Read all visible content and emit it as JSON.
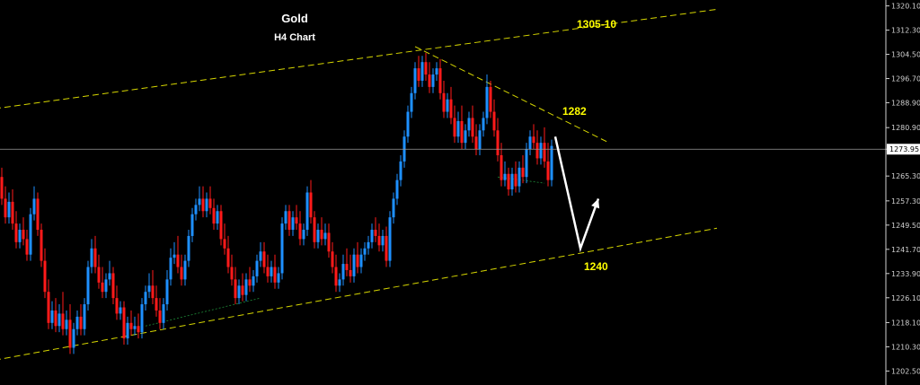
{
  "chart_data": {
    "type": "candlestick",
    "title": "Gold",
    "subtitle": "H4 Chart",
    "ylim": [
      1198.0,
      1322.0
    ],
    "y_ticks": [
      "1320.10",
      "1312.30",
      "1304.50",
      "1296.70",
      "1288.90",
      "1280.90",
      "1273.95",
      "1265.30",
      "1257.30",
      "1249.50",
      "1241.70",
      "1233.90",
      "1226.10",
      "1218.10",
      "1210.30",
      "1202.50"
    ],
    "current_price": "1273.95",
    "annotations": [
      {
        "text": "1305-10",
        "price": 1313
      },
      {
        "text": "1282",
        "price": 1285
      },
      {
        "text": "1240",
        "price": 1235
      }
    ],
    "trendlines": [
      {
        "name": "upper-channel",
        "from": {
          "bar": -2,
          "price": 1287
        },
        "to": {
          "bar": 199,
          "price": 1319
        },
        "color": "#d6d600"
      },
      {
        "name": "lower-channel",
        "from": {
          "bar": -2,
          "price": 1206
        },
        "to": {
          "bar": 199,
          "price": 1248.5
        },
        "color": "#d6d600"
      },
      {
        "name": "resistance",
        "from": {
          "bar": 115,
          "price": 1307
        },
        "to": {
          "bar": 169,
          "price": 1276
        },
        "color": "#d6d600"
      },
      {
        "name": "support-minor",
        "from": {
          "bar": 40,
          "price": 1217
        },
        "to": {
          "bar": 72,
          "price": 1226
        },
        "color": "#1f8f3a"
      },
      {
        "name": "support-minor-2",
        "from": {
          "bar": 138,
          "price": 1265
        },
        "to": {
          "bar": 151,
          "price": 1263
        },
        "color": "#1f8f3a"
      }
    ],
    "forecast_path": [
      {
        "bar": 154,
        "price": 1278
      },
      {
        "bar": 161,
        "price": 1242
      },
      {
        "bar": 166,
        "price": 1258
      }
    ],
    "candles": [
      {
        "o": 1265,
        "h": 1268,
        "c": 1258
      },
      {
        "o": 1258,
        "h": 1262,
        "c": 1252
      },
      {
        "o": 1252,
        "h": 1260,
        "c": 1257
      },
      {
        "o": 1257,
        "h": 1261,
        "c": 1250
      },
      {
        "o": 1250,
        "h": 1254,
        "c": 1244
      },
      {
        "o": 1244,
        "h": 1250,
        "c": 1248
      },
      {
        "o": 1248,
        "h": 1252,
        "c": 1245
      },
      {
        "o": 1245,
        "h": 1248,
        "c": 1240
      },
      {
        "o": 1240,
        "h": 1255,
        "c": 1253
      },
      {
        "o": 1253,
        "h": 1262,
        "c": 1258
      },
      {
        "o": 1258,
        "h": 1260,
        "c": 1248
      },
      {
        "o": 1248,
        "h": 1250,
        "c": 1238
      },
      {
        "o": 1238,
        "h": 1242,
        "c": 1228
      },
      {
        "o": 1228,
        "h": 1232,
        "c": 1218
      },
      {
        "o": 1218,
        "h": 1225,
        "c": 1222
      },
      {
        "o": 1222,
        "h": 1226,
        "c": 1217
      },
      {
        "o": 1217,
        "h": 1224,
        "c": 1221
      },
      {
        "o": 1221,
        "h": 1228,
        "c": 1216
      },
      {
        "o": 1216,
        "h": 1222,
        "c": 1219
      },
      {
        "o": 1219,
        "h": 1224,
        "c": 1210
      },
      {
        "o": 1210,
        "h": 1218,
        "c": 1216
      },
      {
        "o": 1216,
        "h": 1222,
        "c": 1220
      },
      {
        "o": 1220,
        "h": 1224,
        "c": 1216
      },
      {
        "o": 1216,
        "h": 1226,
        "c": 1224
      },
      {
        "o": 1224,
        "h": 1238,
        "c": 1236
      },
      {
        "o": 1236,
        "h": 1245,
        "c": 1242
      },
      {
        "o": 1242,
        "h": 1246,
        "c": 1236
      },
      {
        "o": 1236,
        "h": 1240,
        "c": 1231
      },
      {
        "o": 1231,
        "h": 1236,
        "c": 1228
      },
      {
        "o": 1228,
        "h": 1234,
        "c": 1232
      },
      {
        "o": 1232,
        "h": 1238,
        "c": 1234
      },
      {
        "o": 1234,
        "h": 1236,
        "c": 1226
      },
      {
        "o": 1226,
        "h": 1230,
        "c": 1221
      },
      {
        "o": 1221,
        "h": 1225,
        "c": 1223
      },
      {
        "o": 1223,
        "h": 1225,
        "c": 1213
      },
      {
        "o": 1213,
        "h": 1220,
        "c": 1218
      },
      {
        "o": 1218,
        "h": 1222,
        "c": 1216
      },
      {
        "o": 1216,
        "h": 1220,
        "c": 1217
      },
      {
        "o": 1217,
        "h": 1221,
        "c": 1215
      },
      {
        "o": 1215,
        "h": 1226,
        "c": 1224
      },
      {
        "o": 1224,
        "h": 1230,
        "c": 1228
      },
      {
        "o": 1228,
        "h": 1234,
        "c": 1230
      },
      {
        "o": 1230,
        "h": 1235,
        "c": 1226
      },
      {
        "o": 1226,
        "h": 1230,
        "c": 1222
      },
      {
        "o": 1222,
        "h": 1226,
        "c": 1218
      },
      {
        "o": 1218,
        "h": 1226,
        "c": 1224
      },
      {
        "o": 1224,
        "h": 1235,
        "c": 1232
      },
      {
        "o": 1232,
        "h": 1242,
        "c": 1239
      },
      {
        "o": 1239,
        "h": 1244,
        "c": 1240
      },
      {
        "o": 1240,
        "h": 1246,
        "c": 1236
      },
      {
        "o": 1236,
        "h": 1240,
        "c": 1232
      },
      {
        "o": 1232,
        "h": 1240,
        "c": 1238
      },
      {
        "o": 1238,
        "h": 1248,
        "c": 1246
      },
      {
        "o": 1246,
        "h": 1255,
        "c": 1253
      },
      {
        "o": 1253,
        "h": 1258,
        "c": 1256
      },
      {
        "o": 1256,
        "h": 1262,
        "c": 1258
      },
      {
        "o": 1258,
        "h": 1262,
        "c": 1254
      },
      {
        "o": 1254,
        "h": 1260,
        "c": 1258
      },
      {
        "o": 1258,
        "h": 1262,
        "c": 1255
      },
      {
        "o": 1255,
        "h": 1258,
        "c": 1250
      },
      {
        "o": 1250,
        "h": 1256,
        "c": 1254
      },
      {
        "o": 1254,
        "h": 1256,
        "c": 1245
      },
      {
        "o": 1245,
        "h": 1250,
        "c": 1242
      },
      {
        "o": 1242,
        "h": 1246,
        "c": 1236
      },
      {
        "o": 1236,
        "h": 1240,
        "c": 1232
      },
      {
        "o": 1232,
        "h": 1236,
        "c": 1226
      },
      {
        "o": 1226,
        "h": 1232,
        "c": 1230
      },
      {
        "o": 1230,
        "h": 1234,
        "c": 1227
      },
      {
        "o": 1227,
        "h": 1234,
        "c": 1232
      },
      {
        "o": 1232,
        "h": 1236,
        "c": 1230
      },
      {
        "o": 1230,
        "h": 1235,
        "c": 1233
      },
      {
        "o": 1233,
        "h": 1240,
        "c": 1238
      },
      {
        "o": 1238,
        "h": 1244,
        "c": 1241
      },
      {
        "o": 1241,
        "h": 1244,
        "c": 1236
      },
      {
        "o": 1236,
        "h": 1240,
        "c": 1233
      },
      {
        "o": 1233,
        "h": 1238,
        "c": 1236
      },
      {
        "o": 1236,
        "h": 1240,
        "c": 1231
      },
      {
        "o": 1231,
        "h": 1236,
        "c": 1234
      },
      {
        "o": 1234,
        "h": 1252,
        "c": 1250
      },
      {
        "o": 1250,
        "h": 1256,
        "c": 1254
      },
      {
        "o": 1254,
        "h": 1256,
        "c": 1248
      },
      {
        "o": 1248,
        "h": 1254,
        "c": 1252
      },
      {
        "o": 1252,
        "h": 1256,
        "c": 1250
      },
      {
        "o": 1250,
        "h": 1254,
        "c": 1245
      },
      {
        "o": 1245,
        "h": 1250,
        "c": 1248
      },
      {
        "o": 1248,
        "h": 1262,
        "c": 1260
      },
      {
        "o": 1260,
        "h": 1264,
        "c": 1252
      },
      {
        "o": 1252,
        "h": 1254,
        "c": 1244
      },
      {
        "o": 1244,
        "h": 1250,
        "c": 1248
      },
      {
        "o": 1248,
        "h": 1252,
        "c": 1245
      },
      {
        "o": 1245,
        "h": 1250,
        "c": 1247
      },
      {
        "o": 1247,
        "h": 1250,
        "c": 1241
      },
      {
        "o": 1241,
        "h": 1244,
        "c": 1236
      },
      {
        "o": 1236,
        "h": 1240,
        "c": 1230
      },
      {
        "o": 1230,
        "h": 1234,
        "c": 1232
      },
      {
        "o": 1232,
        "h": 1240,
        "c": 1237
      },
      {
        "o": 1237,
        "h": 1242,
        "c": 1235
      },
      {
        "o": 1235,
        "h": 1240,
        "c": 1233
      },
      {
        "o": 1233,
        "h": 1242,
        "c": 1240
      },
      {
        "o": 1240,
        "h": 1244,
        "c": 1236
      },
      {
        "o": 1236,
        "h": 1242,
        "c": 1240
      },
      {
        "o": 1240,
        "h": 1244,
        "c": 1242
      },
      {
        "o": 1242,
        "h": 1246,
        "c": 1244
      },
      {
        "o": 1244,
        "h": 1250,
        "c": 1248
      },
      {
        "o": 1248,
        "h": 1252,
        "c": 1246
      },
      {
        "o": 1246,
        "h": 1250,
        "c": 1243
      },
      {
        "o": 1243,
        "h": 1248,
        "c": 1246
      },
      {
        "o": 1246,
        "h": 1249,
        "c": 1238
      },
      {
        "o": 1238,
        "h": 1254,
        "c": 1252
      },
      {
        "o": 1252,
        "h": 1260,
        "c": 1258
      },
      {
        "o": 1258,
        "h": 1266,
        "c": 1264
      },
      {
        "o": 1264,
        "h": 1272,
        "c": 1270
      },
      {
        "o": 1270,
        "h": 1280,
        "c": 1278
      },
      {
        "o": 1278,
        "h": 1288,
        "c": 1286
      },
      {
        "o": 1286,
        "h": 1294,
        "c": 1292
      },
      {
        "o": 1292,
        "h": 1302,
        "c": 1300
      },
      {
        "o": 1300,
        "h": 1304,
        "c": 1296
      },
      {
        "o": 1296,
        "h": 1304,
        "c": 1302
      },
      {
        "o": 1302,
        "h": 1305,
        "c": 1298
      },
      {
        "o": 1298,
        "h": 1302,
        "c": 1294
      },
      {
        "o": 1294,
        "h": 1300,
        "c": 1298
      },
      {
        "o": 1298,
        "h": 1302,
        "c": 1300
      },
      {
        "o": 1300,
        "h": 1303,
        "c": 1292
      },
      {
        "o": 1292,
        "h": 1296,
        "c": 1286
      },
      {
        "o": 1286,
        "h": 1292,
        "c": 1290
      },
      {
        "o": 1290,
        "h": 1294,
        "c": 1284
      },
      {
        "o": 1284,
        "h": 1288,
        "c": 1278
      },
      {
        "o": 1278,
        "h": 1286,
        "c": 1283
      },
      {
        "o": 1283,
        "h": 1288,
        "c": 1276
      },
      {
        "o": 1276,
        "h": 1282,
        "c": 1280
      },
      {
        "o": 1280,
        "h": 1286,
        "c": 1284
      },
      {
        "o": 1284,
        "h": 1288,
        "c": 1278
      },
      {
        "o": 1278,
        "h": 1282,
        "c": 1274
      },
      {
        "o": 1274,
        "h": 1282,
        "c": 1280
      },
      {
        "o": 1280,
        "h": 1286,
        "c": 1284
      },
      {
        "o": 1284,
        "h": 1298,
        "c": 1294
      },
      {
        "o": 1294,
        "h": 1296,
        "c": 1286
      },
      {
        "o": 1286,
        "h": 1290,
        "c": 1280
      },
      {
        "o": 1280,
        "h": 1284,
        "c": 1272
      },
      {
        "o": 1272,
        "h": 1276,
        "c": 1264
      },
      {
        "o": 1264,
        "h": 1270,
        "c": 1266
      },
      {
        "o": 1266,
        "h": 1268,
        "c": 1261
      },
      {
        "o": 1261,
        "h": 1268,
        "c": 1266
      },
      {
        "o": 1266,
        "h": 1270,
        "c": 1262
      },
      {
        "o": 1262,
        "h": 1270,
        "c": 1268
      },
      {
        "o": 1268,
        "h": 1272,
        "c": 1265
      },
      {
        "o": 1265,
        "h": 1276,
        "c": 1274
      },
      {
        "o": 1274,
        "h": 1280,
        "c": 1278
      },
      {
        "o": 1278,
        "h": 1282,
        "c": 1276
      },
      {
        "o": 1276,
        "h": 1280,
        "c": 1271
      },
      {
        "o": 1271,
        "h": 1278,
        "c": 1276
      },
      {
        "o": 1276,
        "h": 1281,
        "c": 1270
      },
      {
        "o": 1270,
        "h": 1276,
        "c": 1264
      },
      {
        "o": 1264,
        "h": 1277,
        "c": 1275
      }
    ]
  }
}
